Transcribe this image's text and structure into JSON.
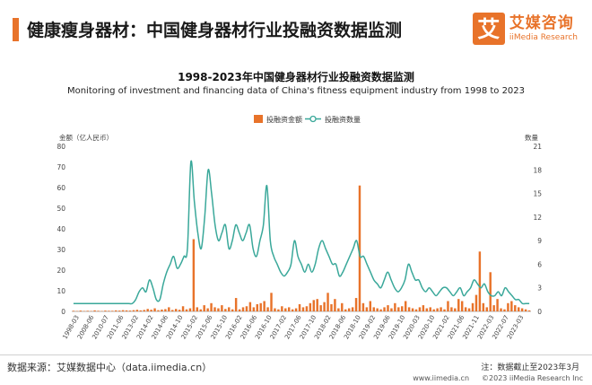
{
  "header": {
    "title": "健康瘦身器材：中国健身器材行业投融资数据监测",
    "logo_mark": "艾",
    "logo_cn": "艾媒咨询",
    "logo_en": "iiMedia Research"
  },
  "footer": {
    "source": "数据来源：艾媒数据中心（data.iimedia.cn）",
    "note": "注：数据截止至2023年3月",
    "site_url": "www.iimedia.cn",
    "copyright": "©2023  iiMedia Research  Inc"
  },
  "colors": {
    "bar": "#e8732a",
    "line": "#3aa89a",
    "accent": "#e8732a"
  },
  "chart_data": {
    "type": "bar",
    "title": "1998-2023年中国健身器材行业投融资数据监测",
    "subtitle": "Monitoring of investment and financing data of China's fitness equipment industry from 1998 to 2023",
    "ylabel_left": "金额（亿人民币）",
    "ylabel_right": "数量",
    "ylim_left": [
      0,
      80
    ],
    "ylim_right": [
      0,
      21
    ],
    "yticks_left": [
      0,
      10,
      20,
      30,
      40,
      50,
      60,
      70,
      80
    ],
    "yticks_right": [
      0,
      3,
      6,
      9,
      12,
      15,
      18,
      21
    ],
    "legend_position": "top-center",
    "x_tick_labels": [
      "1998-03",
      "2008-06",
      "2010-07",
      "2011-06",
      "2013-02",
      "2014-02",
      "2014-06",
      "2014-10",
      "2015-02",
      "2015-06",
      "2015-10",
      "2016-02",
      "2016-06",
      "2016-10",
      "2017-02",
      "2017-06",
      "2017-10",
      "2018-02",
      "2018-06",
      "2018-10",
      "2019-02",
      "2019-06",
      "2019-10",
      "2020-03",
      "2020-10",
      "2021-02",
      "2021-06",
      "2021-11",
      "2022-03",
      "2022-07",
      "2023-03"
    ],
    "series": [
      {
        "name": "投融资金额",
        "kind": "bar",
        "axis": "left",
        "values": [
          0.3,
          0.2,
          0.4,
          0.2,
          0.3,
          0.2,
          0.5,
          0.3,
          0.2,
          0.4,
          0.3,
          0.3,
          0.5,
          0.4,
          0.6,
          0.5,
          0.4,
          0.6,
          0.8,
          0.5,
          0.7,
          1.2,
          0.8,
          1.5,
          0.6,
          0.9,
          1.1,
          2,
          0.7,
          1.2,
          0.8,
          2.5,
          1,
          1.5,
          35,
          2,
          1,
          3,
          1.5,
          4,
          2,
          1.5,
          3,
          1.2,
          2,
          1,
          6.5,
          1,
          2,
          2.5,
          4.5,
          2,
          3.5,
          4,
          5,
          2,
          9,
          1.5,
          1,
          2.5,
          1.5,
          2,
          1,
          1.5,
          3.5,
          2,
          2.5,
          4,
          5.5,
          6,
          3,
          4.5,
          9,
          3.5,
          6,
          1.5,
          4,
          1,
          1.5,
          2,
          6.5,
          61,
          4,
          2,
          5,
          2,
          1.5,
          1,
          2,
          3,
          1.5,
          4,
          2,
          2.5,
          5,
          2,
          1.5,
          1,
          2,
          3,
          1.5,
          2,
          1,
          1.5,
          2,
          1,
          5,
          2,
          1.5,
          6,
          5,
          2,
          1.5,
          4,
          8,
          29,
          4,
          2,
          19,
          3,
          6,
          1.5,
          1,
          4,
          5,
          3,
          2,
          1.5,
          1,
          0.5
        ]
      },
      {
        "name": "投融资数量",
        "kind": "line",
        "axis": "right",
        "values": [
          1,
          1,
          1,
          1,
          1,
          1,
          1,
          1,
          1,
          1,
          1,
          1,
          1,
          1,
          1,
          1,
          1,
          1,
          1.5,
          2.5,
          3,
          2.5,
          4,
          3,
          1.5,
          1.5,
          3.5,
          5,
          6,
          7,
          5.5,
          6,
          7,
          8,
          19,
          14,
          10,
          8,
          12,
          18,
          15,
          11,
          9,
          10,
          11,
          8,
          9,
          11,
          10,
          9,
          10,
          11,
          8,
          7,
          9,
          11,
          16,
          9,
          7,
          6,
          5,
          4.5,
          5,
          6,
          9,
          7,
          6,
          5,
          6,
          5,
          6,
          8,
          9,
          8,
          7,
          6,
          6,
          4.5,
          5,
          6,
          7,
          8,
          9,
          7,
          7,
          6,
          5,
          4,
          3.5,
          3,
          4,
          5,
          4,
          3,
          2.5,
          3,
          4,
          6,
          5,
          4,
          4,
          3,
          2.5,
          3,
          2.5,
          2,
          2.5,
          3,
          3,
          2.5,
          2,
          2.5,
          3,
          2,
          2.5,
          3,
          4,
          3.5,
          3,
          3.5,
          2.5,
          2,
          2,
          2.5,
          2,
          3,
          2.5,
          2,
          1.5,
          1.5,
          1,
          1,
          1
        ]
      }
    ]
  }
}
